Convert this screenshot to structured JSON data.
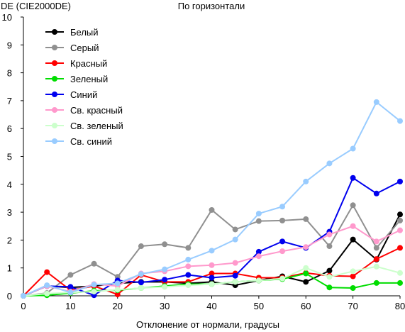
{
  "chart_data": {
    "type": "line",
    "title": "По горизонтали",
    "ylabel": "DE (CIE2000DE)",
    "xlabel": "Отклонение от нормали, градусы",
    "xlim": [
      0,
      80
    ],
    "ylim": [
      0,
      10
    ],
    "x_ticks": [
      "0",
      "10",
      "20",
      "30",
      "40",
      "50",
      "60",
      "70",
      "80"
    ],
    "y_ticks": [
      "0",
      "1",
      "2",
      "3",
      "4",
      "5",
      "6",
      "7",
      "8",
      "9",
      "10"
    ],
    "grid": false,
    "legend_position": "top-left",
    "x": [
      0,
      5,
      10,
      15,
      20,
      25,
      30,
      35,
      40,
      45,
      50,
      55,
      60,
      65,
      70,
      75,
      80
    ],
    "series": [
      {
        "name": "Белый",
        "color": "#000000",
        "values": [
          0,
          0.35,
          0.3,
          0.35,
          0.45,
          0.5,
          0.5,
          0.45,
          0.5,
          0.38,
          0.55,
          0.7,
          0.5,
          0.9,
          2.02,
          1.3,
          2.92
        ]
      },
      {
        "name": "Серый",
        "color": "#909090",
        "values": [
          0,
          0.1,
          0.75,
          1.15,
          0.68,
          1.78,
          1.85,
          1.72,
          3.08,
          2.38,
          2.68,
          2.7,
          2.75,
          1.78,
          3.25,
          1.72,
          2.7
        ]
      },
      {
        "name": "Красный",
        "color": "#ff0000",
        "values": [
          0,
          0.85,
          0.2,
          0.35,
          0.05,
          0.75,
          0.5,
          0.5,
          0.8,
          0.8,
          0.65,
          0.65,
          0.82,
          0.72,
          0.7,
          1.32,
          1.72
        ]
      },
      {
        "name": "Зеленый",
        "color": "#00dd00",
        "values": [
          0,
          0.02,
          0.1,
          0.18,
          0.2,
          0.28,
          0.35,
          0.42,
          0.42,
          0.5,
          0.55,
          0.6,
          0.8,
          0.3,
          0.28,
          0.46,
          0.46
        ]
      },
      {
        "name": "Синий",
        "color": "#0000ee",
        "values": [
          0,
          0.35,
          0.32,
          0.02,
          0.55,
          0.48,
          0.58,
          0.75,
          0.65,
          0.72,
          1.58,
          1.95,
          1.72,
          2.3,
          4.23,
          3.67,
          4.1
        ]
      },
      {
        "name": "Св. красный",
        "color": "#ff99cc",
        "values": [
          0,
          0.35,
          0.15,
          0.42,
          0.35,
          0.8,
          0.88,
          1.06,
          1.1,
          1.18,
          1.42,
          1.6,
          1.75,
          2.2,
          2.5,
          1.95,
          2.35
        ]
      },
      {
        "name": "Св. зеленый",
        "color": "#ccffcc",
        "values": [
          0,
          0.08,
          0.12,
          0.15,
          0.22,
          0.28,
          0.32,
          0.38,
          0.42,
          0.5,
          0.55,
          0.62,
          1.0,
          0.68,
          0.88,
          1.05,
          0.82
        ]
      },
      {
        "name": "Св. синий",
        "color": "#99ccff",
        "values": [
          0,
          0.38,
          0.12,
          0.4,
          0.45,
          0.78,
          0.95,
          1.3,
          1.62,
          2.02,
          2.95,
          3.2,
          4.1,
          4.75,
          5.28,
          6.95,
          6.27
        ]
      }
    ]
  }
}
